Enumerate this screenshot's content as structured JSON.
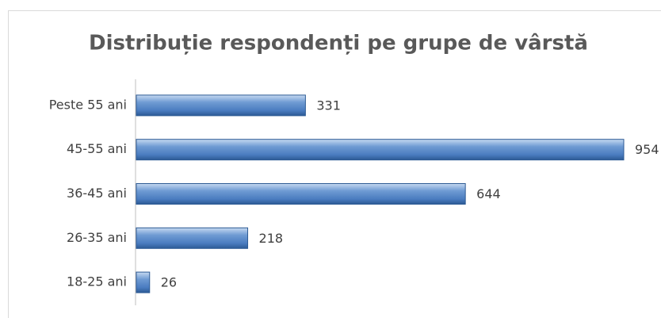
{
  "chart_data": {
    "type": "hbar",
    "title": "Distribuție respondenți pe grupe de vârstă",
    "categories": [
      "Peste 55 ani",
      "45-55 ani",
      "36-45 ani",
      "26-35 ani",
      "18-25 ani"
    ],
    "values": [
      331,
      954,
      644,
      218,
      26
    ],
    "color": "#4f81bd"
  }
}
